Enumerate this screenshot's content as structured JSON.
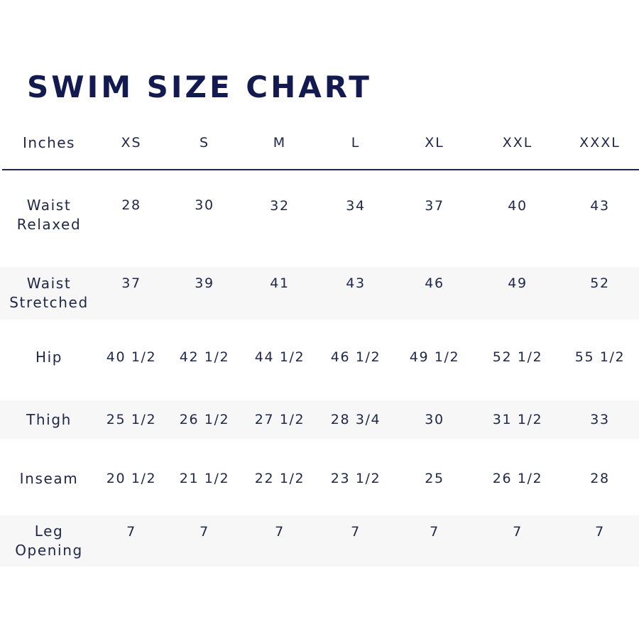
{
  "title": "SWIM SIZE CHART",
  "header": {
    "unit": "Inches",
    "sizes": [
      "XS",
      "S",
      "M",
      "L",
      "XL",
      "XXL",
      "XXXL"
    ]
  },
  "rows": [
    {
      "label": "Waist Relaxed",
      "values": [
        "28",
        "30",
        "32",
        "34",
        "37",
        "40",
        "43"
      ]
    },
    {
      "label": "Waist Stretched",
      "values": [
        "37",
        "39",
        "41",
        "43",
        "46",
        "49",
        "52"
      ]
    },
    {
      "label": "Hip",
      "values": [
        "40 1/2",
        "42 1/2",
        "44 1/2",
        "46 1/2",
        "49 1/2",
        "52 1/2",
        "55 1/2"
      ]
    },
    {
      "label": "Thigh",
      "values": [
        "25 1/2",
        "26 1/2",
        "27 1/2",
        "28 3/4",
        "30",
        "31 1/2",
        "33"
      ]
    },
    {
      "label": "Inseam",
      "values": [
        "20 1/2",
        "21 1/2",
        "22 1/2",
        "23 1/2",
        "25",
        "26 1/2",
        "28"
      ]
    },
    {
      "label": "Leg Opening",
      "values": [
        "7",
        "7",
        "7",
        "7",
        "7",
        "7",
        "7"
      ]
    }
  ],
  "colors": {
    "title": "#131a4f",
    "text": "#20284a",
    "rule": "#1d2550",
    "row_shade": "#f7f7f7"
  }
}
